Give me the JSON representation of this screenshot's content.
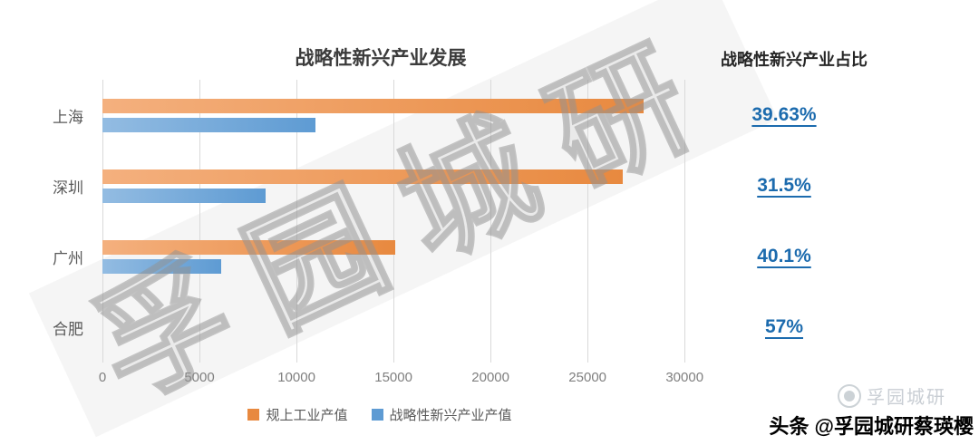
{
  "chart_data": {
    "type": "bar",
    "orientation": "horizontal",
    "title": "战略性新兴产业发展",
    "categories": [
      "上海",
      "深圳",
      "广州",
      "合肥"
    ],
    "series": [
      {
        "name": "规上工业产值",
        "color": "#E8893F",
        "color_light": "#F4B07E",
        "values": [
          27900,
          26800,
          15100,
          null
        ]
      },
      {
        "name": "战略性新兴产业产值",
        "color": "#5E9BD3",
        "color_light": "#93BCE2",
        "values": [
          11000,
          8400,
          6100,
          null
        ]
      }
    ],
    "xlim": [
      0,
      32000
    ],
    "xticks": [
      0,
      5000,
      10000,
      15000,
      20000,
      25000,
      30000
    ],
    "grid": true,
    "legend_position": "bottom"
  },
  "right_panel": {
    "header": "战略性新兴产业占比",
    "values": [
      "39.63%",
      "31.5%",
      "40.1%",
      "57%"
    ]
  },
  "watermark": {
    "diagonal_text": "孚园城研",
    "logo_text": "孚园城研"
  },
  "footer": {
    "credit": "头条 @孚园城研蔡瑛樱"
  },
  "colors": {
    "percent_blue": "#1C6BAE",
    "orange": "#E8893F",
    "blue": "#5E9BD3",
    "gridline": "#D9D9D9"
  }
}
